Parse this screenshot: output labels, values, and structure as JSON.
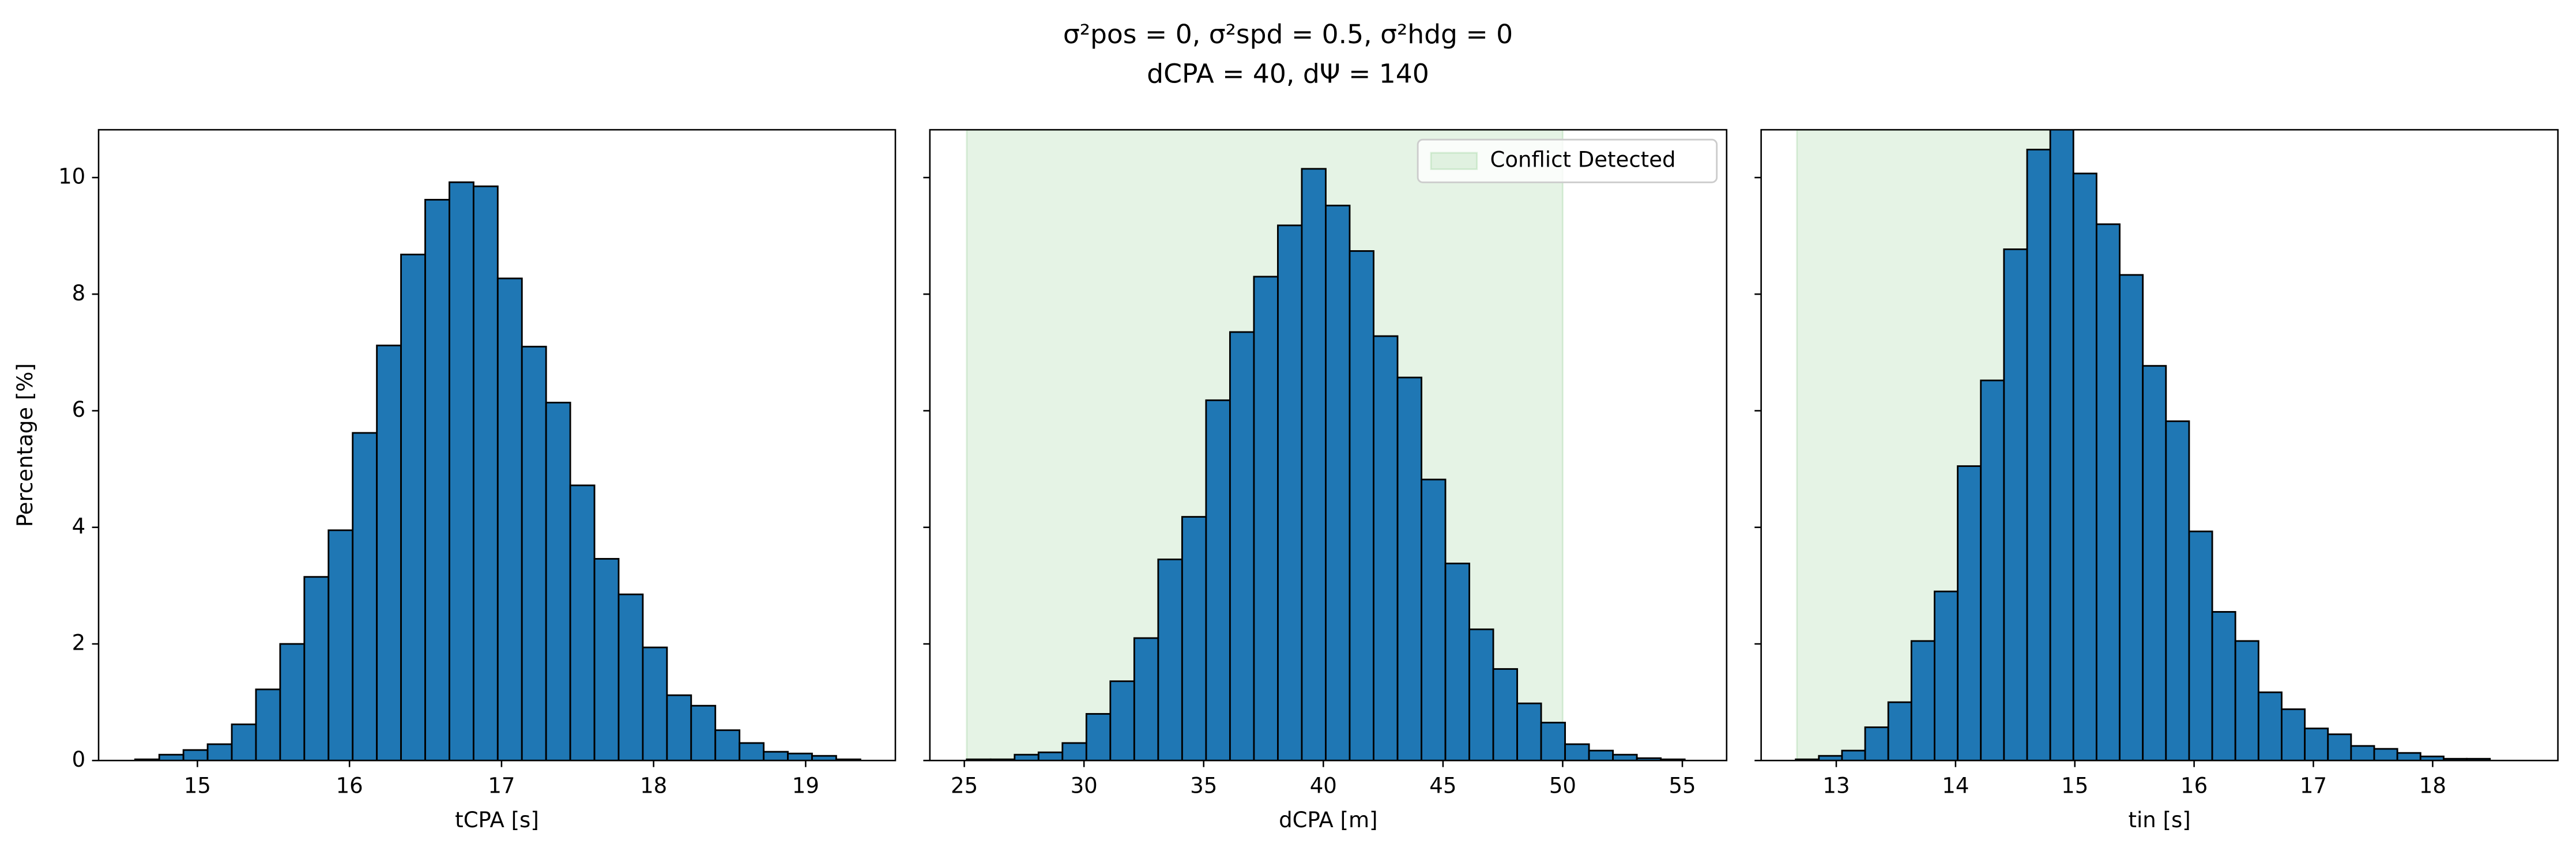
{
  "title": [
    "σ²pos = 0, σ²spd = 0.5, σ²hdg = 0",
    "dCPA = 40, dΨ = 140"
  ],
  "chart_data": [
    {
      "type": "histogram",
      "xlabel": "tCPA [s]",
      "ylabel": "Percentage [%]",
      "color": "#1f77b4",
      "bins": [
        14.59,
        14.749,
        14.908,
        15.067,
        15.226,
        15.385,
        15.544,
        15.703,
        15.862,
        16.021,
        16.18,
        16.339,
        16.498,
        16.657,
        16.816,
        16.975,
        17.134,
        17.293,
        17.452,
        17.611,
        17.77,
        17.929,
        18.088,
        18.247,
        18.406,
        18.565,
        18.724,
        18.883,
        19.042,
        19.201,
        19.36
      ],
      "values": [
        0.02,
        0.1,
        0.18,
        0.28,
        0.62,
        1.22,
        2.0,
        3.15,
        3.95,
        5.62,
        7.12,
        8.68,
        9.62,
        9.92,
        9.85,
        8.27,
        7.1,
        6.14,
        4.72,
        3.46,
        2.85,
        1.94,
        1.12,
        0.94,
        0.52,
        0.3,
        0.15,
        0.12,
        0.08,
        0.02
      ],
      "xlim": [
        14.35,
        19.59
      ],
      "ylim": [
        0,
        10.82
      ],
      "xticks": [
        15,
        16,
        17,
        18,
        19
      ],
      "yticks": [
        0,
        2,
        4,
        6,
        8,
        10
      ]
    },
    {
      "type": "histogram",
      "xlabel": "dCPA [m]",
      "color": "#1f77b4",
      "bins": [
        25.1,
        26.1,
        27.1,
        28.1,
        29.1,
        30.1,
        31.1,
        32.1,
        33.1,
        34.1,
        35.1,
        36.1,
        37.1,
        38.1,
        39.1,
        40.1,
        41.1,
        42.1,
        43.1,
        44.1,
        45.1,
        46.1,
        47.1,
        48.1,
        49.1,
        50.1,
        51.1,
        52.1,
        53.1,
        54.1,
        55.1
      ],
      "values": [
        0.02,
        0.02,
        0.1,
        0.14,
        0.3,
        0.8,
        1.36,
        2.1,
        3.45,
        4.18,
        6.18,
        7.35,
        8.3,
        9.18,
        10.15,
        9.52,
        8.74,
        7.28,
        6.57,
        4.82,
        3.38,
        2.25,
        1.57,
        0.98,
        0.65,
        0.28,
        0.17,
        0.1,
        0.04,
        0.02
      ],
      "xlim": [
        23.56,
        56.85
      ],
      "ylim": [
        0,
        10.82
      ],
      "xticks": [
        25,
        30,
        35,
        40,
        45,
        50,
        55
      ],
      "yticks": [
        0,
        2,
        4,
        6,
        8,
        10
      ],
      "ytick_labels": false,
      "span": [
        25.1,
        50.0
      ],
      "span_color": "#2ca02c",
      "span_label": "Conflict Detected",
      "legend": "upper right"
    },
    {
      "type": "histogram",
      "xlabel": "tin [s]",
      "color": "#1f77b4",
      "bins": [
        12.66,
        12.854,
        13.048,
        13.242,
        13.436,
        13.63,
        13.824,
        14.018,
        14.212,
        14.406,
        14.6,
        14.794,
        14.988,
        15.182,
        15.376,
        15.57,
        15.764,
        15.958,
        16.152,
        16.346,
        16.54,
        16.734,
        16.928,
        17.122,
        17.316,
        17.51,
        17.704,
        17.898,
        18.092,
        18.286,
        18.48
      ],
      "values": [
        0.02,
        0.08,
        0.17,
        0.57,
        1.0,
        2.05,
        2.9,
        5.05,
        6.52,
        8.77,
        10.48,
        11.2,
        10.07,
        9.2,
        8.33,
        6.77,
        5.82,
        3.93,
        2.55,
        2.05,
        1.17,
        0.88,
        0.55,
        0.45,
        0.25,
        0.2,
        0.13,
        0.07,
        0.03,
        0.03
      ],
      "xlim": [
        12.37,
        19.05
      ],
      "ylim": [
        0,
        10.82
      ],
      "xticks": [
        13,
        14,
        15,
        16,
        17,
        18
      ],
      "yticks": [
        0,
        2,
        4,
        6,
        8,
        10
      ],
      "ytick_labels": false,
      "span": [
        12.67,
        14.9
      ],
      "span_color": "#2ca02c"
    }
  ]
}
